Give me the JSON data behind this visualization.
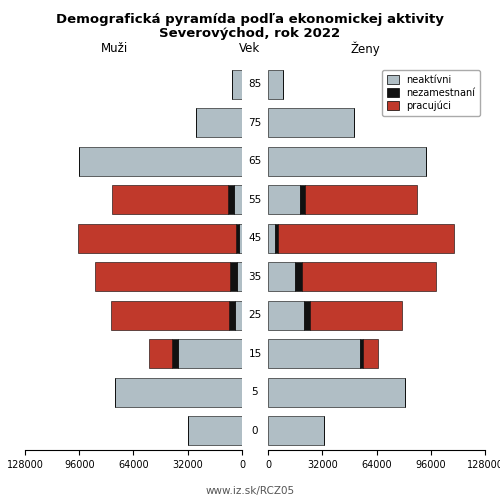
{
  "title_line1": "Demografická pyramída podľa ekonomickej aktivity",
  "title_line2": "Severovýchod, rok 2022",
  "xlabel_left": "Muži",
  "xlabel_center": "Vek",
  "xlabel_right": "Ženy",
  "footer": "www.iz.sk/RCZ05",
  "age_labels": [
    "85",
    "75",
    "65",
    "55",
    "45",
    "35",
    "25",
    "15",
    "5",
    "0"
  ],
  "men_neaktivni": [
    6000,
    27000,
    96000,
    5000,
    2000,
    3000,
    4000,
    38000,
    75000,
    32000
  ],
  "men_nezamestnani": [
    0,
    0,
    0,
    3500,
    1500,
    4000,
    3500,
    3000,
    0,
    0
  ],
  "men_pracujuci": [
    0,
    0,
    0,
    68000,
    93000,
    80000,
    70000,
    14000,
    0,
    0
  ],
  "wom_neaktivni": [
    9000,
    51000,
    93000,
    19000,
    4000,
    16000,
    21000,
    54000,
    81000,
    33000
  ],
  "wom_nezamestnani": [
    0,
    0,
    0,
    3000,
    2000,
    4000,
    4000,
    2000,
    0,
    0
  ],
  "wom_pracujuci": [
    0,
    0,
    0,
    66000,
    104000,
    79000,
    54000,
    9000,
    0,
    0
  ],
  "color_neaktivni": "#b0bec5",
  "color_nezamestnani": "#111111",
  "color_pracujuci": "#c0392b",
  "xlim": 128000,
  "bar_height": 0.75
}
